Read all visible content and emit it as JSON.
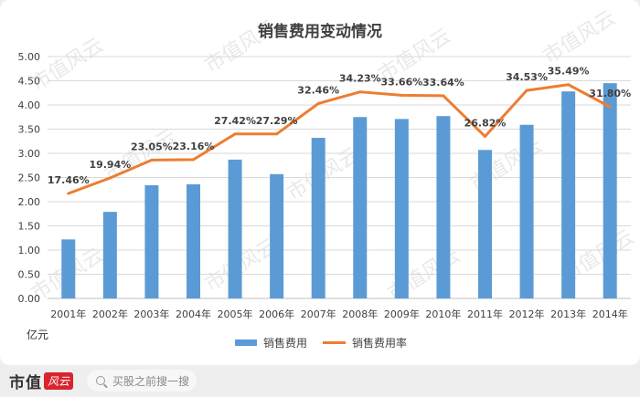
{
  "chart_data": {
    "type": "bar+line",
    "title": "销售费用变动情况",
    "categories": [
      "2001年",
      "2002年",
      "2003年",
      "2004年",
      "2005年",
      "2006年",
      "2007年",
      "2008年",
      "2009年",
      "2010年",
      "2011年",
      "2012年",
      "2013年",
      "2014年"
    ],
    "ylabel": "亿元",
    "ylim": [
      0,
      5.0
    ],
    "yticks": [
      "0.00",
      "0.50",
      "1.00",
      "1.50",
      "2.00",
      "2.50",
      "3.00",
      "3.50",
      "4.00",
      "4.50",
      "5.00"
    ],
    "grid": true,
    "legend_position": "bottom",
    "series": [
      {
        "name": "销售费用",
        "type": "bar",
        "color": "#5b9bd5",
        "values": [
          1.22,
          1.79,
          2.34,
          2.36,
          2.87,
          2.57,
          3.32,
          3.75,
          3.71,
          3.77,
          3.07,
          3.59,
          4.28,
          4.45
        ]
      },
      {
        "name": "销售费用率",
        "type": "line",
        "color": "#ed7d31",
        "values": [
          2.17,
          2.49,
          2.86,
          2.87,
          3.4,
          3.4,
          4.03,
          4.27,
          4.2,
          4.19,
          3.35,
          4.3,
          4.42,
          3.96
        ],
        "labels": [
          "17.46%",
          "19.94%",
          "23.05%",
          "23.16%",
          "27.42%",
          "27.29%",
          "32.46%",
          "34.23%",
          "33.66%",
          "33.64%",
          "26.82%",
          "34.53%",
          "35.49%",
          "31.80%"
        ]
      }
    ]
  },
  "watermark": "市值风云",
  "footer": {
    "brand": "市值",
    "brand_badge": "风云",
    "search_placeholder": "买股之前搜一搜"
  }
}
